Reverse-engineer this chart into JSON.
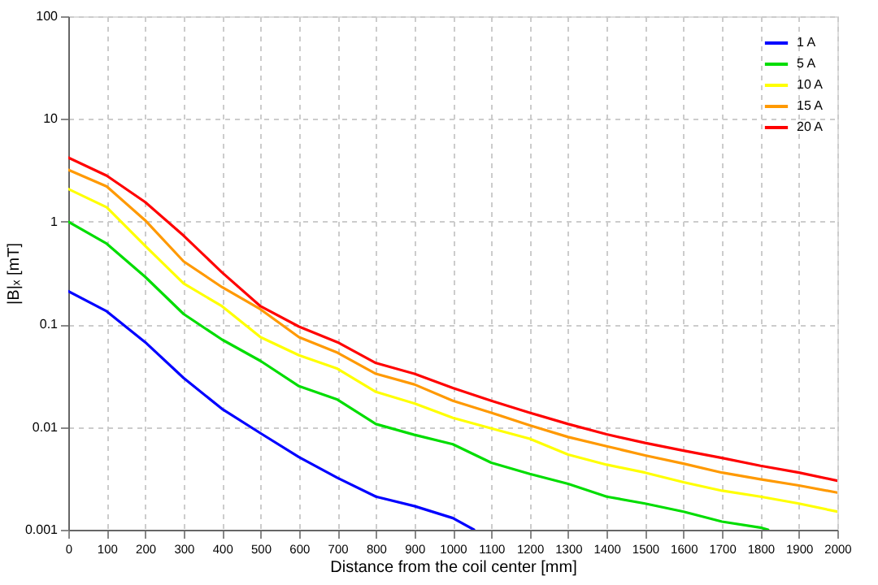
{
  "chart_data": {
    "type": "line",
    "xlabel": "Distance from the coil center   [mm]",
    "ylabel": "|B|ₓ  [mT]",
    "log": "y",
    "grid": true,
    "legend": "top right",
    "line_style": "solid",
    "marker": "none",
    "xlim": [
      0,
      2000
    ],
    "xticks": [
      0,
      100,
      200,
      300,
      400,
      500,
      600,
      700,
      800,
      900,
      1000,
      1100,
      1200,
      1300,
      1400,
      1500,
      1600,
      1700,
      1800,
      1900,
      2000
    ],
    "ylim": [
      0.001,
      100
    ],
    "yticks": [
      0.001,
      0.01,
      0.1,
      1,
      10,
      100
    ],
    "series": [
      {
        "name": "1 A",
        "color": "#0000ff",
        "x": [
          0,
          100,
          200,
          300,
          400,
          500,
          600,
          700,
          800,
          900,
          1000,
          1055
        ],
        "values": [
          0.21,
          0.134,
          0.067,
          0.03,
          0.015,
          0.0087,
          0.0051,
          0.0032,
          0.0021,
          0.0017,
          0.0013,
          0.001
        ]
      },
      {
        "name": "5 A",
        "color": "#00dd00",
        "x": [
          0,
          100,
          200,
          300,
          400,
          500,
          600,
          700,
          800,
          900,
          1000,
          1100,
          1200,
          1300,
          1400,
          1500,
          1600,
          1700,
          1800,
          1820
        ],
        "values": [
          1.0,
          0.61,
          0.29,
          0.126,
          0.071,
          0.044,
          0.025,
          0.0185,
          0.0107,
          0.0084,
          0.0068,
          0.0045,
          0.0035,
          0.0028,
          0.0021,
          0.0018,
          0.0015,
          0.0012,
          0.00105,
          0.001
        ]
      },
      {
        "name": "10 A",
        "color": "#ffff00",
        "x": [
          0,
          100,
          200,
          300,
          400,
          500,
          600,
          700,
          800,
          900,
          1000,
          1100,
          1200,
          1300,
          1400,
          1500,
          1600,
          1700,
          1800,
          1900,
          2000
        ],
        "values": [
          2.08,
          1.38,
          0.58,
          0.25,
          0.15,
          0.075,
          0.05,
          0.037,
          0.022,
          0.017,
          0.0123,
          0.0097,
          0.0077,
          0.0054,
          0.0043,
          0.0036,
          0.0029,
          0.0024,
          0.0021,
          0.0018,
          0.0015
        ]
      },
      {
        "name": "15 A",
        "color": "#ff9900",
        "x": [
          0,
          100,
          200,
          300,
          400,
          500,
          600,
          700,
          800,
          900,
          1000,
          1100,
          1200,
          1300,
          1400,
          1500,
          1600,
          1700,
          1800,
          1900,
          2000
        ],
        "values": [
          3.2,
          2.2,
          1.03,
          0.41,
          0.23,
          0.14,
          0.075,
          0.053,
          0.033,
          0.026,
          0.018,
          0.0138,
          0.0104,
          0.008,
          0.0065,
          0.0053,
          0.0044,
          0.0036,
          0.0031,
          0.0027,
          0.0023
        ]
      },
      {
        "name": "20 A",
        "color": "#ff0000",
        "x": [
          0,
          100,
          200,
          300,
          400,
          500,
          600,
          700,
          800,
          900,
          1000,
          1100,
          1200,
          1300,
          1400,
          1500,
          1600,
          1700,
          1800,
          1900,
          2000
        ],
        "values": [
          4.2,
          2.8,
          1.55,
          0.73,
          0.32,
          0.15,
          0.095,
          0.067,
          0.042,
          0.033,
          0.024,
          0.018,
          0.0138,
          0.0107,
          0.0085,
          0.007,
          0.0059,
          0.005,
          0.0042,
          0.0036,
          0.003
        ]
      }
    ]
  }
}
